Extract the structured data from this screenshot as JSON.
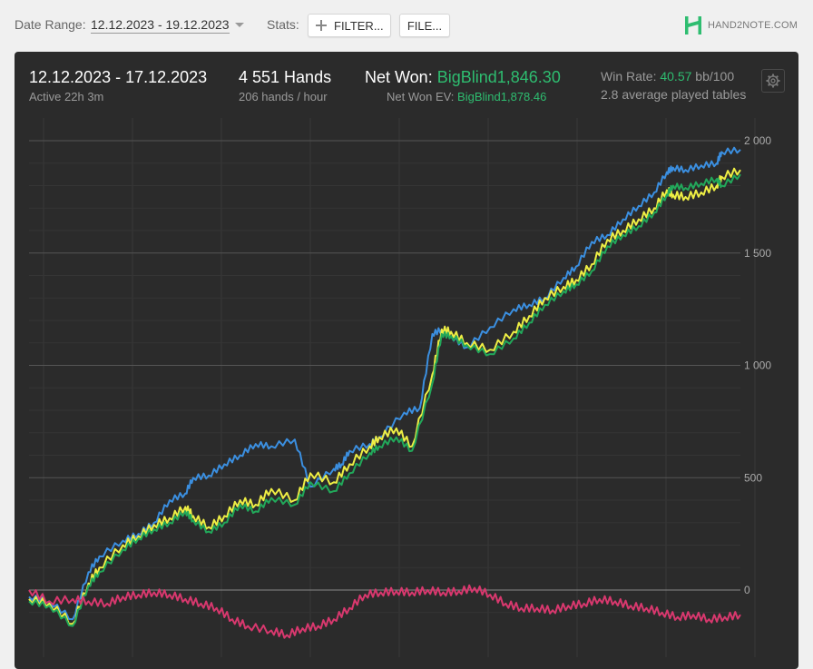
{
  "toolbar": {
    "date_range_label": "Date Range:",
    "date_range_value": "12.12.2023 - 19.12.2023",
    "stats_label": "Stats:",
    "filter_label": "FILTER...",
    "file_label": "FILE...",
    "logo_text": "HAND2NOTE.COM"
  },
  "summary": {
    "date_range": "12.12.2023 - 17.12.2023",
    "active": "Active 22h 3m",
    "hands": "4 551 Hands",
    "hands_per_hour": "206 hands / hour",
    "net_won_label": "Net Won:",
    "net_won_value": "BigBlind1,846.30",
    "net_won_ev_label": "Net Won  EV:",
    "net_won_ev_value": "BigBlind1,878.46",
    "win_rate_label": "Win Rate:",
    "win_rate_value": "40.57",
    "win_rate_unit": "bb/100",
    "tables": "2.8 average played tables"
  },
  "colors": {
    "accent_green": "#2ebd70",
    "panel_bg": "#2b2b2b",
    "showdown": "#3b8fe0",
    "non_showdown": "#d8386e",
    "ev": "#eeee44",
    "net": "#22a85a"
  },
  "chart_data": {
    "type": "line",
    "title": "",
    "xlabel": "",
    "ylabel": "",
    "y_ticks": [
      "0",
      "500",
      "1 000",
      "1 500",
      "2 000"
    ],
    "ylim": [
      -200,
      2000
    ],
    "xlim": [
      0,
      4551
    ],
    "grid": true,
    "series": [
      {
        "color": "#3b8fe0",
        "x": [
          0,
          130,
          280,
          380,
          450,
          600,
          700,
          800,
          900,
          1000,
          1050,
          1150,
          1250,
          1350,
          1450,
          1550,
          1700,
          1800,
          1950,
          2000,
          2050,
          2180,
          2240,
          2400,
          2500,
          2580,
          2640,
          2700,
          2800,
          2950,
          3100,
          3200,
          3300,
          3420,
          3500,
          3600,
          3700,
          3800,
          3900,
          4000,
          4080,
          4120,
          4200,
          4300,
          4400,
          4430,
          4551
        ],
        "values": [
          -30,
          -50,
          -130,
          80,
          150,
          220,
          250,
          300,
          400,
          430,
          500,
          510,
          560,
          600,
          650,
          640,
          670,
          460,
          540,
          560,
          620,
          650,
          680,
          790,
          810,
          1140,
          1160,
          1130,
          1080,
          1170,
          1250,
          1270,
          1300,
          1390,
          1440,
          1550,
          1580,
          1650,
          1710,
          1770,
          1860,
          1880,
          1870,
          1890,
          1900,
          1950,
          1960
        ]
      },
      {
        "color": "#eeee44",
        "x": [
          0,
          130,
          280,
          380,
          450,
          600,
          700,
          800,
          900,
          1000,
          1050,
          1150,
          1250,
          1350,
          1450,
          1550,
          1700,
          1800,
          1950,
          2050,
          2180,
          2240,
          2350,
          2450,
          2580,
          2640,
          2700,
          2800,
          2950,
          3100,
          3200,
          3300,
          3420,
          3500,
          3600,
          3700,
          3800,
          3900,
          4000,
          4080,
          4120,
          4200,
          4300,
          4400,
          4430,
          4551
        ],
        "values": [
          -40,
          -60,
          -150,
          30,
          100,
          200,
          240,
          290,
          320,
          370,
          330,
          280,
          330,
          400,
          380,
          450,
          400,
          520,
          480,
          560,
          640,
          680,
          720,
          640,
          960,
          1160,
          1150,
          1100,
          1070,
          1150,
          1220,
          1300,
          1350,
          1380,
          1450,
          1560,
          1600,
          1650,
          1700,
          1780,
          1760,
          1750,
          1770,
          1800,
          1840,
          1870
        ]
      },
      {
        "color": "#22a85a",
        "x": [
          0,
          130,
          280,
          380,
          450,
          600,
          700,
          800,
          900,
          1000,
          1050,
          1150,
          1250,
          1350,
          1450,
          1550,
          1700,
          1800,
          1950,
          2050,
          2180,
          2240,
          2350,
          2450,
          2580,
          2640,
          2700,
          2800,
          2950,
          3100,
          3200,
          3300,
          3420,
          3500,
          3600,
          3700,
          3800,
          3900,
          4000,
          4080,
          4120,
          4200,
          4300,
          4400,
          4430,
          4551
        ],
        "values": [
          -50,
          -70,
          -160,
          20,
          80,
          180,
          230,
          270,
          300,
          350,
          310,
          260,
          300,
          380,
          350,
          410,
          380,
          480,
          440,
          520,
          610,
          640,
          680,
          620,
          920,
          1140,
          1130,
          1090,
          1050,
          1120,
          1190,
          1270,
          1330,
          1360,
          1420,
          1530,
          1580,
          1620,
          1680,
          1760,
          1800,
          1790,
          1810,
          1830,
          1800,
          1850
        ]
      },
      {
        "color": "#d8386e",
        "x": [
          0,
          130,
          280,
          380,
          500,
          600,
          700,
          800,
          900,
          1000,
          1100,
          1200,
          1300,
          1400,
          1550,
          1650,
          1750,
          1850,
          1950,
          2050,
          2150,
          2250,
          2350,
          2450,
          2550,
          2650,
          2750,
          2850,
          2950,
          3050,
          3150,
          3250,
          3350,
          3450,
          3550,
          3650,
          3750,
          3850,
          3950,
          4050,
          4150,
          4250,
          4350,
          4451,
          4551
        ],
        "values": [
          0,
          -50,
          -40,
          -50,
          -60,
          -30,
          -20,
          -10,
          -20,
          -40,
          -60,
          -80,
          -130,
          -160,
          -180,
          -200,
          -170,
          -160,
          -130,
          -80,
          -20,
          -10,
          -5,
          -10,
          0,
          -10,
          -5,
          10,
          -20,
          -60,
          -80,
          -80,
          -90,
          -70,
          -60,
          -40,
          -50,
          -70,
          -80,
          -100,
          -120,
          -110,
          -130,
          -120,
          -110
        ]
      }
    ]
  }
}
